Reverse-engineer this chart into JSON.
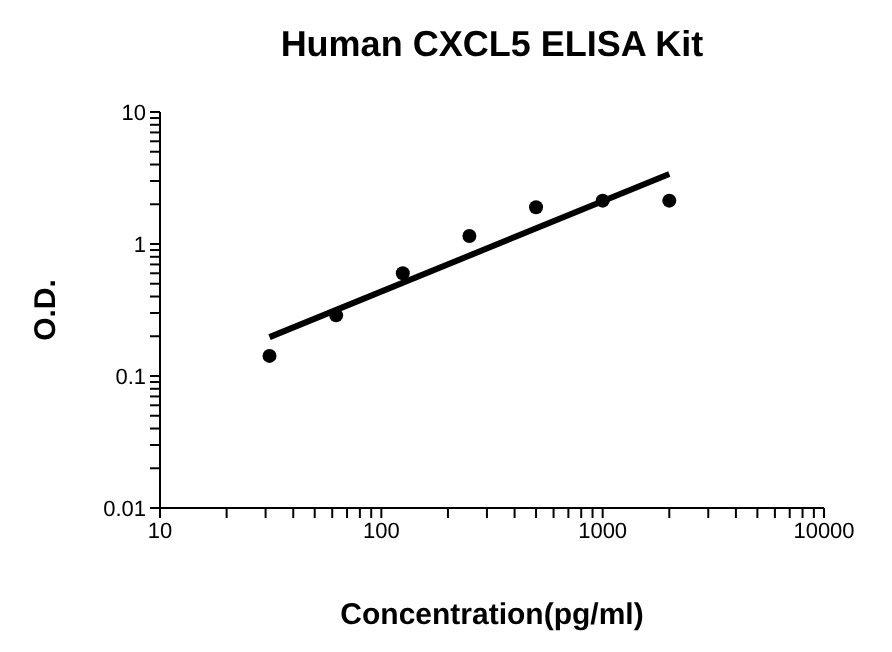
{
  "chart_data": {
    "type": "scatter",
    "title": "Human CXCL5 ELISA Kit",
    "xlabel": "Concentration(pg/ml)",
    "ylabel": "O.D.",
    "log": "xy",
    "grid": false,
    "legend": false,
    "xlim": [
      10,
      10000
    ],
    "ylim": [
      0.01,
      10
    ],
    "xticks": [
      10,
      {
        "value": 20,
        "label": null
      },
      {
        "value": 30,
        "label": null
      },
      {
        "value": 40,
        "label": null
      },
      {
        "value": 50,
        "label": null
      },
      {
        "value": 60,
        "label": null
      },
      {
        "value": 70,
        "label": null
      },
      {
        "value": 80,
        "label": null
      },
      {
        "value": 90,
        "label": null
      },
      100,
      {
        "value": 200,
        "label": null
      },
      {
        "value": 300,
        "label": null
      },
      {
        "value": 400,
        "label": null
      },
      {
        "value": 500,
        "label": null
      },
      {
        "value": 600,
        "label": null
      },
      {
        "value": 700,
        "label": null
      },
      {
        "value": 800,
        "label": null
      },
      {
        "value": 900,
        "label": null
      },
      1000,
      {
        "value": 2000,
        "label": null
      },
      {
        "value": 3000,
        "label": null
      },
      {
        "value": 4000,
        "label": null
      },
      {
        "value": 5000,
        "label": null
      },
      {
        "value": 6000,
        "label": null
      },
      {
        "value": 7000,
        "label": null
      },
      {
        "value": 8000,
        "label": null
      },
      {
        "value": 9000,
        "label": null
      },
      10000
    ],
    "yticks": [
      0.01,
      {
        "value": 0.02,
        "label": null
      },
      {
        "value": 0.03,
        "label": null
      },
      {
        "value": 0.04,
        "label": null
      },
      {
        "value": 0.05,
        "label": null
      },
      {
        "value": 0.06,
        "label": null
      },
      {
        "value": 0.07,
        "label": null
      },
      {
        "value": 0.08,
        "label": null
      },
      {
        "value": 0.09,
        "label": null
      },
      0.1,
      {
        "value": 0.2,
        "label": null
      },
      {
        "value": 0.3,
        "label": null
      },
      {
        "value": 0.4,
        "label": null
      },
      {
        "value": 0.5,
        "label": null
      },
      {
        "value": 0.6,
        "label": null
      },
      {
        "value": 0.7,
        "label": null
      },
      {
        "value": 0.8,
        "label": null
      },
      {
        "value": 0.9,
        "label": null
      },
      1,
      {
        "value": 2,
        "label": null
      },
      {
        "value": 3,
        "label": null
      },
      {
        "value": 4,
        "label": null
      },
      {
        "value": 5,
        "label": null
      },
      {
        "value": 6,
        "label": null
      },
      {
        "value": 7,
        "label": null
      },
      {
        "value": 8,
        "label": null
      },
      {
        "value": 9,
        "label": null
      },
      10
    ],
    "series": [
      {
        "type": "scatter",
        "color": "#000000",
        "marker": "circle",
        "x": [
          31.25,
          62.5,
          125,
          250,
          500,
          1000,
          2000
        ],
        "values": [
          0.142,
          0.288,
          0.6,
          1.15,
          1.9,
          2.13,
          2.13
        ]
      },
      {
        "type": "line",
        "color": "#000000",
        "marker": "none",
        "line_style": "solid",
        "x": [
          31.25,
          2000
        ],
        "values": [
          0.197,
          3.39
        ]
      }
    ]
  }
}
